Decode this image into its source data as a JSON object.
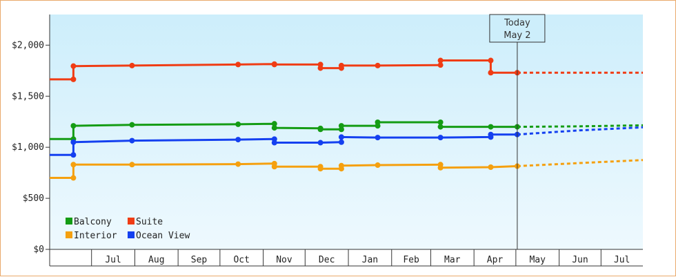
{
  "chart_data": {
    "type": "line",
    "title": "",
    "xlabel": "",
    "ylabel": "",
    "ylim": [
      0,
      2300
    ],
    "y_ticks": [
      "$0",
      "$500",
      "$1,000",
      "$1,500",
      "$2,000"
    ],
    "y_tick_values": [
      0,
      500,
      1000,
      1500,
      2000
    ],
    "x_start": "2013-06-01",
    "x_end": "2014-07-31",
    "x_month_labels": [
      "Jul",
      "Aug",
      "Sep",
      "Oct",
      "Nov",
      "Dec",
      "Jan",
      "Feb",
      "Mar",
      "Apr",
      "May",
      "Jun",
      "Jul"
    ],
    "x_month_starts": [
      "2013-07-01",
      "2013-08-01",
      "2013-09-01",
      "2013-10-01",
      "2013-11-01",
      "2013-12-01",
      "2014-01-01",
      "2014-02-01",
      "2014-03-01",
      "2014-04-01",
      "2014-05-01",
      "2014-06-01",
      "2014-07-01"
    ],
    "today": {
      "line1": "Today",
      "line2": "May 2",
      "date": "2014-05-02"
    },
    "legend_placement": "bottom-left",
    "grid": false,
    "series": [
      {
        "name": "Balcony",
        "color": "#149c14",
        "points": [
          [
            "2013-06-01",
            1080
          ],
          [
            "2013-06-18",
            1080
          ],
          [
            "2013-06-18",
            1210
          ],
          [
            "2013-07-30",
            1220
          ],
          [
            "2013-10-14",
            1225
          ],
          [
            "2013-11-09",
            1230
          ],
          [
            "2013-11-09",
            1190
          ],
          [
            "2013-12-12",
            1185
          ],
          [
            "2013-12-12",
            1175
          ],
          [
            "2013-12-27",
            1175
          ],
          [
            "2013-12-27",
            1210
          ],
          [
            "2014-01-22",
            1210
          ],
          [
            "2014-01-22",
            1245
          ],
          [
            "2014-03-08",
            1245
          ],
          [
            "2014-03-08",
            1200
          ],
          [
            "2014-04-13",
            1200
          ],
          [
            "2014-05-02",
            1200
          ]
        ],
        "forecast": [
          [
            "2014-05-02",
            1200
          ],
          [
            "2014-06-15",
            1205
          ],
          [
            "2014-07-31",
            1215
          ]
        ]
      },
      {
        "name": "Suite",
        "color": "#f03c14",
        "points": [
          [
            "2013-06-01",
            1665
          ],
          [
            "2013-06-18",
            1665
          ],
          [
            "2013-06-18",
            1795
          ],
          [
            "2013-07-30",
            1800
          ],
          [
            "2013-10-14",
            1810
          ],
          [
            "2013-11-09",
            1815
          ],
          [
            "2013-11-09",
            1810
          ],
          [
            "2013-12-12",
            1810
          ],
          [
            "2013-12-12",
            1775
          ],
          [
            "2013-12-27",
            1775
          ],
          [
            "2013-12-27",
            1800
          ],
          [
            "2014-01-22",
            1800
          ],
          [
            "2014-03-08",
            1805
          ],
          [
            "2014-03-08",
            1850
          ],
          [
            "2014-04-13",
            1850
          ],
          [
            "2014-04-13",
            1730
          ],
          [
            "2014-05-02",
            1730
          ]
        ],
        "forecast": [
          [
            "2014-05-02",
            1730
          ],
          [
            "2014-06-15",
            1730
          ],
          [
            "2014-07-31",
            1730
          ]
        ]
      },
      {
        "name": "Interior",
        "color": "#f5a00f",
        "points": [
          [
            "2013-06-01",
            700
          ],
          [
            "2013-06-18",
            700
          ],
          [
            "2013-06-18",
            830
          ],
          [
            "2013-07-30",
            830
          ],
          [
            "2013-10-14",
            835
          ],
          [
            "2013-11-09",
            840
          ],
          [
            "2013-11-09",
            810
          ],
          [
            "2013-12-12",
            810
          ],
          [
            "2013-12-12",
            790
          ],
          [
            "2013-12-27",
            790
          ],
          [
            "2013-12-27",
            820
          ],
          [
            "2014-01-22",
            825
          ],
          [
            "2014-03-08",
            830
          ],
          [
            "2014-03-08",
            800
          ],
          [
            "2014-04-13",
            805
          ],
          [
            "2014-05-02",
            815
          ]
        ],
        "forecast": [
          [
            "2014-05-02",
            815
          ],
          [
            "2014-06-15",
            845
          ],
          [
            "2014-07-31",
            875
          ]
        ]
      },
      {
        "name": "Ocean View",
        "color": "#1440f0",
        "points": [
          [
            "2013-06-01",
            925
          ],
          [
            "2013-06-18",
            925
          ],
          [
            "2013-06-18",
            1050
          ],
          [
            "2013-07-30",
            1065
          ],
          [
            "2013-10-14",
            1075
          ],
          [
            "2013-11-09",
            1080
          ],
          [
            "2013-11-09",
            1045
          ],
          [
            "2013-12-12",
            1045
          ],
          [
            "2013-12-27",
            1050
          ],
          [
            "2013-12-27",
            1100
          ],
          [
            "2014-01-22",
            1095
          ],
          [
            "2014-03-08",
            1095
          ],
          [
            "2014-04-13",
            1100
          ],
          [
            "2014-04-13",
            1125
          ],
          [
            "2014-05-02",
            1125
          ]
        ],
        "forecast": [
          [
            "2014-05-02",
            1125
          ],
          [
            "2014-06-15",
            1165
          ],
          [
            "2014-07-31",
            1195
          ]
        ]
      }
    ]
  }
}
